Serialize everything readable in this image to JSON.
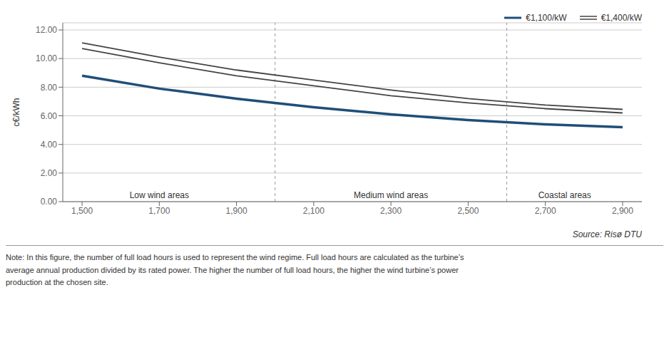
{
  "chart_data": {
    "type": "line",
    "x": [
      1500,
      1700,
      1900,
      2100,
      2300,
      2500,
      2700,
      2900
    ],
    "series": [
      {
        "name": "€1,100/kW",
        "color": "#1f4e79",
        "values": [
          8.8,
          7.9,
          7.2,
          6.6,
          6.1,
          5.7,
          5.4,
          5.2
        ]
      },
      {
        "name": "€1,400/kW",
        "color": "#444444",
        "type": "band",
        "upper": [
          11.1,
          10.1,
          9.2,
          8.5,
          7.8,
          7.2,
          6.75,
          6.45
        ],
        "lower": [
          10.7,
          9.7,
          8.8,
          8.1,
          7.4,
          6.9,
          6.5,
          6.2
        ]
      }
    ],
    "ylabel": "c€/kWh",
    "xlim": [
      1450,
      2950
    ],
    "ylim": [
      0.0,
      12.5
    ],
    "xticks": [
      {
        "value": 1500,
        "label": "1,500"
      },
      {
        "value": 1700,
        "label": "1,700"
      },
      {
        "value": 1900,
        "label": "1,900"
      },
      {
        "value": 2100,
        "label": "2,100"
      },
      {
        "value": 2300,
        "label": "2,300"
      },
      {
        "value": 2500,
        "label": "2,500"
      },
      {
        "value": 2700,
        "label": "2,700"
      },
      {
        "value": 2900,
        "label": "2,900"
      }
    ],
    "yticks": [
      {
        "value": 0,
        "label": "0.00"
      },
      {
        "value": 2,
        "label": "2.00"
      },
      {
        "value": 4,
        "label": "4.00"
      },
      {
        "value": 6,
        "label": "6.00"
      },
      {
        "value": 8,
        "label": "8.00"
      },
      {
        "value": 10,
        "label": "10.00"
      },
      {
        "value": 12,
        "label": "12.00"
      }
    ],
    "grid": true,
    "legend": "upper right",
    "annotations": [
      {
        "text": "Low wind areas",
        "x": 1700
      },
      {
        "text": "Medium wind areas",
        "x": 2300
      },
      {
        "text": "Coastal areas",
        "x": 2750
      }
    ],
    "zone_separators": [
      2000,
      2600
    ],
    "source": "Source: Risø DTU",
    "note": "Note: In this figure, the number of full load hours is used to represent the wind regime. Full load hours are calculated as the turbine’s\naverage annual production divided by its rated power. The higher the number of full load hours, the higher the wind turbine’s power\nproduction at the chosen site."
  }
}
